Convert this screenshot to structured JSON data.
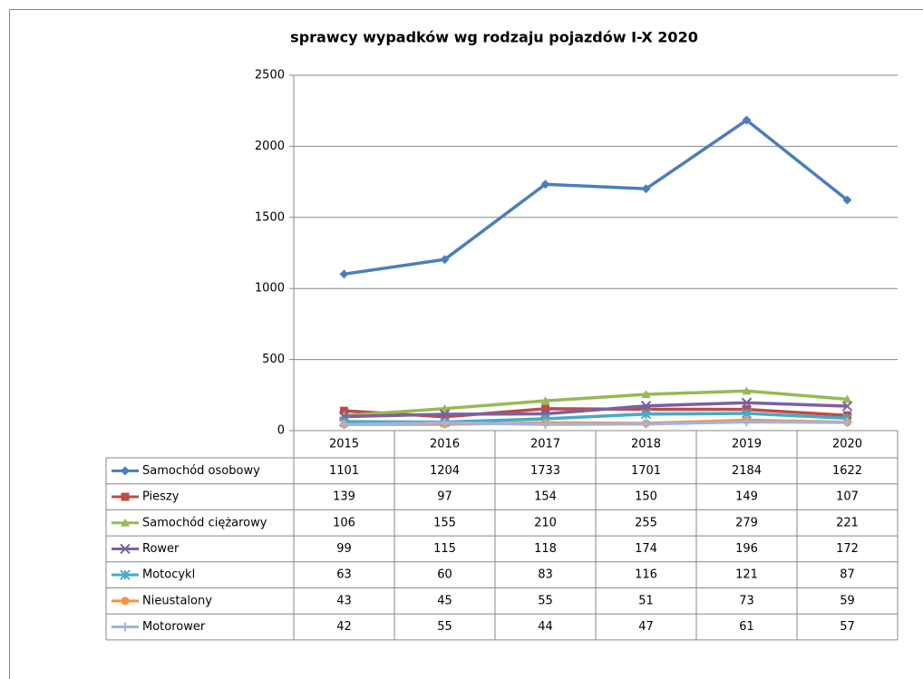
{
  "chart_data": {
    "type": "line",
    "title": "sprawcy wypadków wg rodzaju pojazdów I-X 2020",
    "categories": [
      "2015",
      "2016",
      "2017",
      "2018",
      "2019",
      "2020"
    ],
    "ylim": [
      0,
      2500
    ],
    "yticks": [
      0,
      500,
      1000,
      1500,
      2000,
      2500
    ],
    "grid": true,
    "series": [
      {
        "name": "Samochód osobowy",
        "color": "#4a7ebb",
        "marker": "diamond",
        "values": [
          1101,
          1204,
          1733,
          1701,
          2184,
          1622
        ]
      },
      {
        "name": "Pieszy",
        "color": "#be4b48",
        "marker": "square",
        "values": [
          139,
          97,
          154,
          150,
          149,
          107
        ]
      },
      {
        "name": "Samochód ciężarowy",
        "color": "#98b954",
        "marker": "triangle",
        "values": [
          106,
          155,
          210,
          255,
          279,
          221
        ]
      },
      {
        "name": "Rower",
        "color": "#7d60a0",
        "marker": "x",
        "values": [
          99,
          115,
          118,
          174,
          196,
          172
        ]
      },
      {
        "name": "Motocykl",
        "color": "#46aac5",
        "marker": "star",
        "values": [
          63,
          60,
          83,
          116,
          121,
          87
        ]
      },
      {
        "name": "Nieustalony",
        "color": "#f69240",
        "marker": "circle",
        "values": [
          43,
          45,
          55,
          51,
          73,
          59
        ]
      },
      {
        "name": "Motorower",
        "color": "#a0b4e0",
        "marker": "plus",
        "values": [
          42,
          55,
          44,
          47,
          61,
          57
        ]
      }
    ]
  }
}
